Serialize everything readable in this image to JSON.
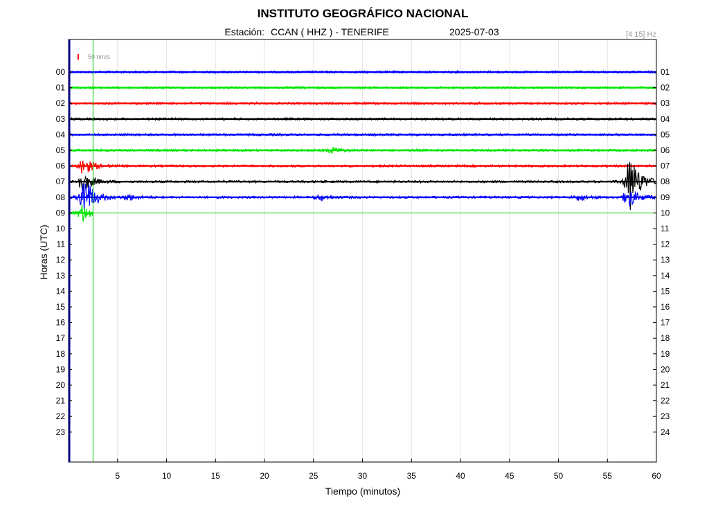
{
  "header": {
    "title": "INSTITUTO GEOGRÁFICO NACIONAL",
    "station_prefix": "Estación:",
    "station": "CCAN ( HHZ ) - TENERIFE",
    "date": "2025-07-03",
    "frequency": "[4 15] Hz"
  },
  "scale_label": "50 nm/s",
  "colors": {
    "blue": "#0000ff",
    "green": "#00e600",
    "red": "#ff0000",
    "black": "#000000",
    "axis_dark": "#000080",
    "marker": "#00cc00",
    "scale_bar": "#ff0000"
  },
  "chart_data": {
    "type": "line",
    "title": "INSTITUTO GEOGRÁFICO NACIONAL",
    "xlabel": "Tiempo (minutos)",
    "ylabel": "Horas (UTC)",
    "xlim": [
      0,
      60
    ],
    "x_ticks": [
      5,
      10,
      15,
      20,
      25,
      30,
      35,
      40,
      45,
      50,
      55,
      60
    ],
    "y_ticks_left": [
      "00",
      "01",
      "02",
      "03",
      "04",
      "05",
      "06",
      "07",
      "08",
      "09",
      "10",
      "11",
      "12",
      "13",
      "14",
      "15",
      "16",
      "17",
      "18",
      "19",
      "20",
      "21",
      "22",
      "23"
    ],
    "y_ticks_right": [
      "01",
      "02",
      "03",
      "04",
      "05",
      "06",
      "07",
      "08",
      "09",
      "10",
      "11",
      "12",
      "13",
      "14",
      "15",
      "16",
      "17",
      "18",
      "19",
      "20",
      "21",
      "22",
      "23",
      "24"
    ],
    "grid": "vertical",
    "current_time_marker_minute": 2.5,
    "last_hour_end_minute": 2.5,
    "traces": [
      {
        "hour": 0,
        "color": "blue",
        "events": []
      },
      {
        "hour": 1,
        "color": "green",
        "events": []
      },
      {
        "hour": 2,
        "color": "red",
        "events": []
      },
      {
        "hour": 3,
        "color": "black",
        "events": []
      },
      {
        "hour": 4,
        "color": "blue",
        "events": []
      },
      {
        "hour": 5,
        "color": "green",
        "events": [
          {
            "minute": 26.8,
            "amplitude": 0.4
          }
        ]
      },
      {
        "hour": 6,
        "color": "red",
        "events": [
          {
            "minute": 1.4,
            "amplitude": 1.2
          }
        ]
      },
      {
        "hour": 7,
        "color": "black",
        "events": [
          {
            "minute": 1.3,
            "amplitude": 1.5
          },
          {
            "minute": 57.2,
            "amplitude": 4.0
          }
        ]
      },
      {
        "hour": 8,
        "color": "blue",
        "events": [
          {
            "minute": 1.5,
            "amplitude": 3.0
          },
          {
            "minute": 6.0,
            "amplitude": 0.4
          },
          {
            "minute": 25.5,
            "amplitude": 0.4
          },
          {
            "minute": 52.0,
            "amplitude": 0.4
          },
          {
            "minute": 57.0,
            "amplitude": 1.5
          }
        ]
      },
      {
        "hour": 9,
        "color": "green",
        "events": [
          {
            "minute": 1.3,
            "amplitude": 1.2
          }
        ]
      }
    ]
  }
}
